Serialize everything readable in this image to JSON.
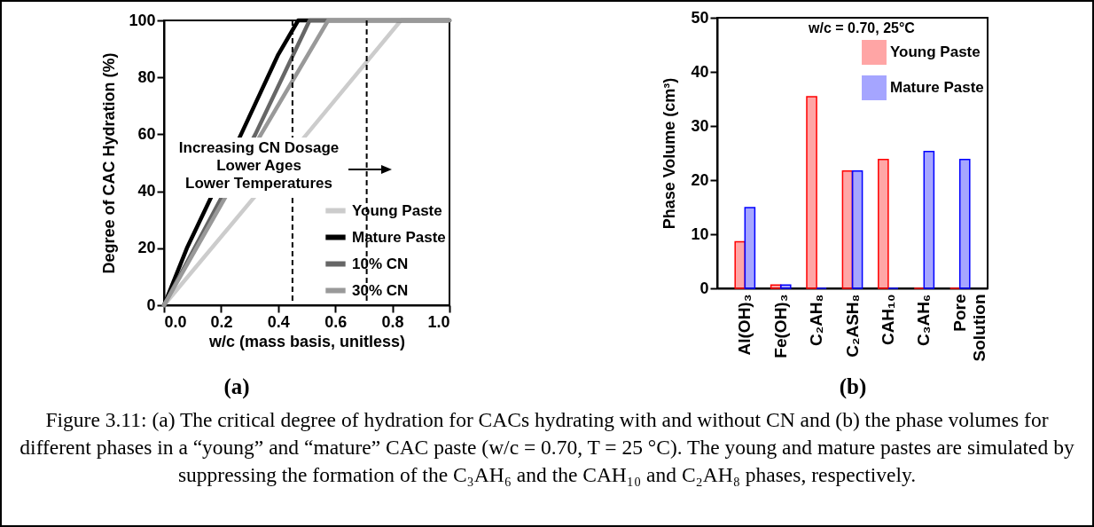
{
  "chart_data": [
    {
      "type": "line",
      "xlabel": "w/c (mass basis, unitless)",
      "ylabel": "Degree of CAC Hydration (%)",
      "xlim": [
        0,
        1
      ],
      "xticks": [
        {
          "value": 0,
          "label": "0.0"
        },
        0.2,
        0.4,
        0.6,
        0.8,
        {
          "value": 1,
          "label": "1.0"
        }
      ],
      "ylim": [
        0,
        100
      ],
      "yticks": [
        0,
        20,
        40,
        60,
        80,
        100
      ],
      "series": [
        {
          "name": "Young Paste",
          "color": "#cccccc",
          "x": [
            0,
            0.5,
            0.83,
            1.0
          ],
          "values": [
            0,
            60,
            100,
            100
          ]
        },
        {
          "name": "Mature Paste",
          "color": "#000000",
          "x": [
            0,
            0.08,
            0.27,
            0.4,
            0.47,
            1.0
          ],
          "values": [
            0,
            20,
            60,
            88,
            100,
            100
          ]
        },
        {
          "name": "10% CN",
          "color": "#666666",
          "x": [
            0,
            0.32,
            0.51,
            1.0
          ],
          "values": [
            0,
            60,
            100,
            100
          ]
        },
        {
          "name": "30% CN",
          "color": "#999999",
          "x": [
            0,
            0.34,
            0.575,
            1.0
          ],
          "values": [
            0,
            60,
            100,
            100
          ]
        }
      ],
      "ref_lines": [
        {
          "axis": "x",
          "value": 0.45,
          "color": "#000000",
          "line_style": "dashed"
        },
        {
          "axis": "x",
          "value": 0.71,
          "color": "#000000",
          "line_style": "dashed"
        }
      ],
      "legend": "bottom right",
      "grid": false,
      "line_style": "solid",
      "annotations": [
        "Increasing CN Dosage\nLower Ages\nLower Temperatures",
        "(a)"
      ]
    },
    {
      "type": "bar",
      "ylabel": "Phase Volume (cm³)",
      "legend_title": "w/c = 0.70, 25°C",
      "categories": [
        "Al(OH)₃",
        "Fe(OH)₃",
        "C₂AH₈",
        "C₂ASH₈",
        "CAH₁₀",
        "C₃AH₆",
        "Pore Solution"
      ],
      "ylim": [
        0,
        50
      ],
      "yticks": [
        0,
        10,
        20,
        30,
        40,
        50
      ],
      "series": [
        {
          "name": "Young Paste",
          "color": "#ff0000",
          "values": [
            8.6,
            0.6,
            35.4,
            21.7,
            23.8,
            0,
            0
          ]
        },
        {
          "name": "Mature Paste",
          "color": "#0000ff",
          "values": [
            14.9,
            0.6,
            0,
            21.7,
            0,
            25.3,
            23.8
          ]
        }
      ],
      "legend": "top right",
      "grid": false,
      "annotations": [
        "(b)",
        "Figure 3.11: (a) The critical degree of hydration for CACs hydrating with and without CN and (b) the phase volumes for different phases in a “young” and “mature” CAC paste (w/c = 0.70, T = 25 °C). The young and mature pastes are simulated by suppressing the formation of the C₃AH₆ and the CAH₁₀ and C₂AH₈ phases, respectively."
      ]
    }
  ]
}
